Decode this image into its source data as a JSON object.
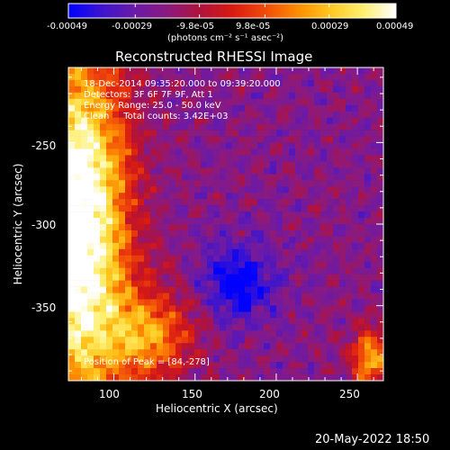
{
  "image": {
    "title": "Reconstructed RHESSI Image",
    "xlabel": "Heliocentric X (arcsec)",
    "ylabel": "Heliocentric Y (arcsec)",
    "date_footer": "20-May-2022 18:50"
  },
  "colorbar": {
    "tick_labels": [
      "-0.00049",
      "-0.00029",
      "-9.8e-05",
      "9.8e-05",
      "0.00029",
      "0.00049"
    ],
    "unit_label": "(photons cm⁻² s⁻¹ asec⁻²)",
    "range": [
      -0.00049,
      0.00049
    ],
    "colors": [
      "#0000ff",
      "#3b14d0",
      "#6a1aa8",
      "#8a1a80",
      "#b0123d",
      "#d81a12",
      "#f04a0a",
      "#ff8c00",
      "#ffc820",
      "#fff070",
      "#ffffff"
    ]
  },
  "annotations": {
    "line1": "18-Dec-2014 09:35:20.000 to 09:39:20.000",
    "line2": "Detectors: 3F 6F 7F 9F, Att 1",
    "line3": "Energy Range: 25.0 - 50.0 keV",
    "line4": "Clean     Total counts: 3.42E+03",
    "peak": "Position of Peak = [84,-278]"
  },
  "axes": {
    "x_ticks": [
      "100",
      "150",
      "200",
      "250"
    ],
    "x_tick_values": [
      100,
      150,
      200,
      250
    ],
    "y_ticks": [
      "-250",
      "-300",
      "-350"
    ],
    "y_tick_values": [
      -250,
      -300,
      -350
    ],
    "xlim": [
      72,
      266
    ],
    "ylim": [
      -396,
      -204
    ]
  }
}
